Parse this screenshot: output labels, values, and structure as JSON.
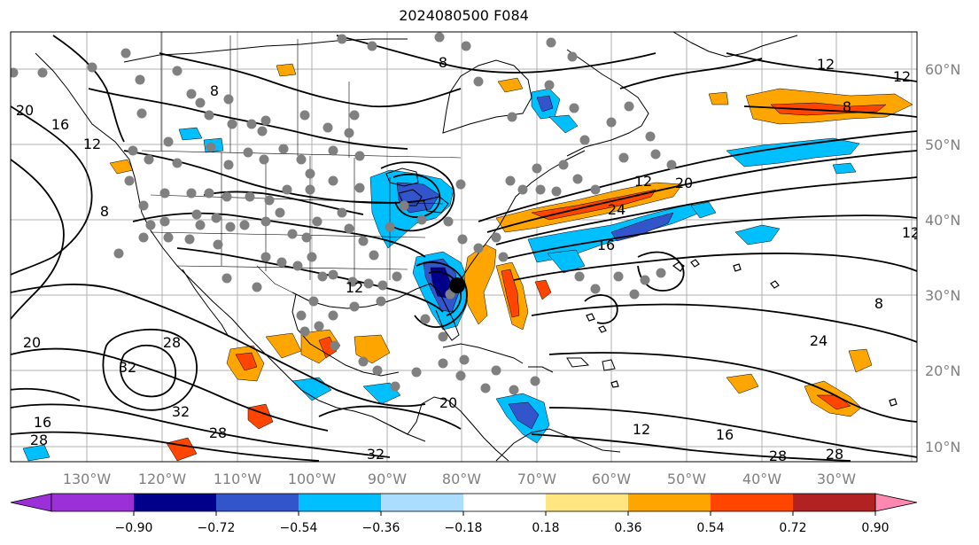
{
  "title": "2024080500 F084",
  "longitude_labels": [
    "130°W",
    "120°W",
    "110°W",
    "100°W",
    "90°W",
    "80°W",
    "70°W",
    "60°W",
    "50°W",
    "40°W",
    "30°W"
  ],
  "latitude_labels": [
    "60°N",
    "50°N",
    "40°N",
    "30°N",
    "20°N",
    "10°N"
  ],
  "contour_labels": [
    "12",
    "12",
    "8",
    "20",
    "16",
    "12",
    "8",
    "8",
    "12",
    "8",
    "24",
    "16",
    "12",
    "12",
    "8",
    "16",
    "20",
    "28",
    "32",
    "32",
    "16",
    "28",
    "28",
    "20",
    "12",
    "24",
    "16",
    "28",
    "28",
    "32",
    "20"
  ],
  "colorbar": {
    "tick_labels": [
      "−0.90",
      "−0.72",
      "−0.54",
      "−0.36",
      "−0.18",
      "0.18",
      "0.36",
      "0.54",
      "0.72",
      "0.90"
    ],
    "colors": {
      "under": "#9b30d9",
      "bins": [
        "#9b30d9",
        "#00008b",
        "#3355cc",
        "#00bfff",
        "#aaddff",
        "#ffffff",
        "#ffe680",
        "#ffa500",
        "#ff4500",
        "#b22222"
      ],
      "over": "#ff88b0"
    }
  },
  "colors": {
    "grid": "#b0b0b0",
    "contour": "#000000",
    "coast": "#000000",
    "station_dot": "#808080",
    "axis_label": "#808080"
  }
}
